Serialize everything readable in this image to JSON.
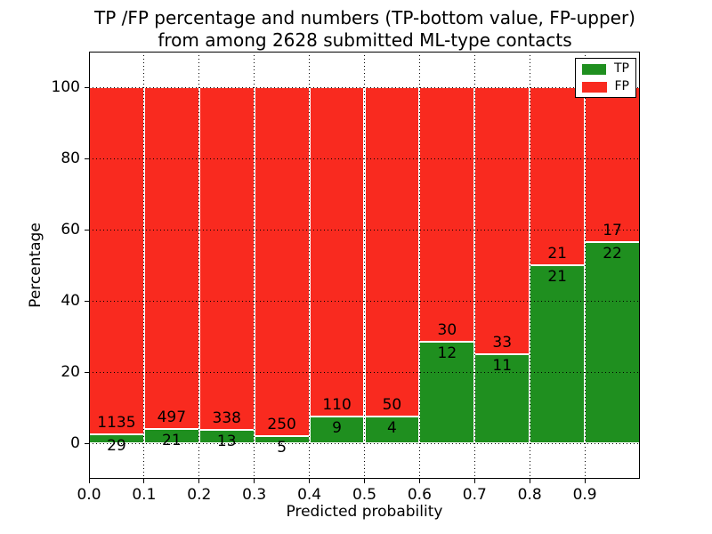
{
  "figure": {
    "title_line1": "TP /FP percentage and numbers (TP-bottom value, FP-upper)",
    "title_line2": "from among 2628 submitted ML-type contacts"
  },
  "chart_data": {
    "type": "bar",
    "stacked": true,
    "normalized": "each bin scaled to 100%",
    "title": "TP /FP percentage and numbers (TP-bottom value, FP-upper) from among 2628 submitted ML-type contacts",
    "xlabel": "Predicted probability",
    "ylabel": "Percentage",
    "xlim": [
      0.0,
      1.0
    ],
    "ylim": [
      -10,
      110
    ],
    "x_tick_labels": [
      "0.0",
      "0.1",
      "0.2",
      "0.3",
      "0.4",
      "0.5",
      "0.6",
      "0.7",
      "0.8",
      "0.9"
    ],
    "y_ticks": [
      0,
      20,
      40,
      60,
      80,
      100
    ],
    "bin_edges": [
      0.0,
      0.1,
      0.2,
      0.3,
      0.4,
      0.5,
      0.6,
      0.7,
      0.8,
      0.9,
      1.0
    ],
    "grid": {
      "style": "dotted",
      "color": "#000000"
    },
    "total_contacts": 2628,
    "series": [
      {
        "name": "TP",
        "color": "#1f8f1f",
        "counts": [
          29,
          21,
          13,
          5,
          9,
          4,
          12,
          11,
          21,
          22
        ]
      },
      {
        "name": "FP",
        "color": "#f92a1f",
        "counts": [
          1135,
          497,
          338,
          250,
          110,
          50,
          30,
          33,
          21,
          17
        ]
      }
    ],
    "legend": {
      "position": "upper right",
      "entries": [
        "TP",
        "FP"
      ]
    }
  }
}
